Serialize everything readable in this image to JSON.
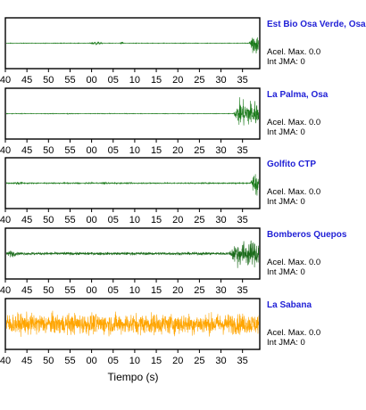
{
  "chart_data": {
    "type": "line",
    "xlabel": "Tiempo (s)",
    "x_tick_labels": [
      "40",
      "45",
      "50",
      "55",
      "00",
      "05",
      "10",
      "15",
      "20",
      "25",
      "30",
      "35"
    ],
    "xlim": [
      40,
      99
    ],
    "grid": false,
    "stations": [
      {
        "name": "Est Bio Osa Verde, Osa",
        "accel_label": "Acel. Max.",
        "accel_value": "0.0",
        "jma_label": "Int JMA:",
        "jma_value": "0",
        "color": "#1a7a1a",
        "noise_amplitude": 0.02,
        "bursts": [
          {
            "start": 59.5,
            "end": 62.5,
            "amplitude": 0.15
          },
          {
            "start": 66.5,
            "end": 67.5,
            "amplitude": 0.1
          },
          {
            "start": 96.5,
            "end": 99,
            "amplitude": 1.0
          }
        ]
      },
      {
        "name": "La Palma, Osa",
        "accel_label": "Acel. Max.",
        "accel_value": "0.0",
        "jma_label": "Int JMA:",
        "jma_value": "0",
        "color": "#1a7a1a",
        "noise_amplitude": 0.02,
        "bursts": [
          {
            "start": 54,
            "end": 55,
            "amplitude": 0.05
          },
          {
            "start": 93,
            "end": 99,
            "amplitude": 0.95
          }
        ]
      },
      {
        "name": "Golfito CTP",
        "accel_label": "Acel. Max.",
        "accel_value": "0.0",
        "jma_label": "Int JMA:",
        "jma_value": "0",
        "color": "#1a7a1a",
        "noise_amplitude": 0.04,
        "bursts": [
          {
            "start": 41.5,
            "end": 44.5,
            "amplitude": 0.12
          },
          {
            "start": 62,
            "end": 64,
            "amplitude": 0.1
          },
          {
            "start": 97,
            "end": 99,
            "amplitude": 1.0
          }
        ]
      },
      {
        "name": "Bomberos Quepos",
        "accel_label": "Acel. Max.",
        "accel_value": "0.0",
        "jma_label": "Int JMA:",
        "jma_value": "0",
        "color": "#1a6b1a",
        "noise_amplitude": 0.1,
        "bursts": [
          {
            "start": 40,
            "end": 43,
            "amplitude": 0.25
          },
          {
            "start": 92,
            "end": 99,
            "amplitude": 0.9
          }
        ]
      },
      {
        "name": "La Sabana",
        "accel_label": "Acel. Max.",
        "accel_value": "0.0",
        "jma_label": "Int JMA:",
        "jma_value": "0",
        "color": "#ffa500",
        "noise_amplitude": 0.75,
        "bursts": []
      }
    ]
  }
}
